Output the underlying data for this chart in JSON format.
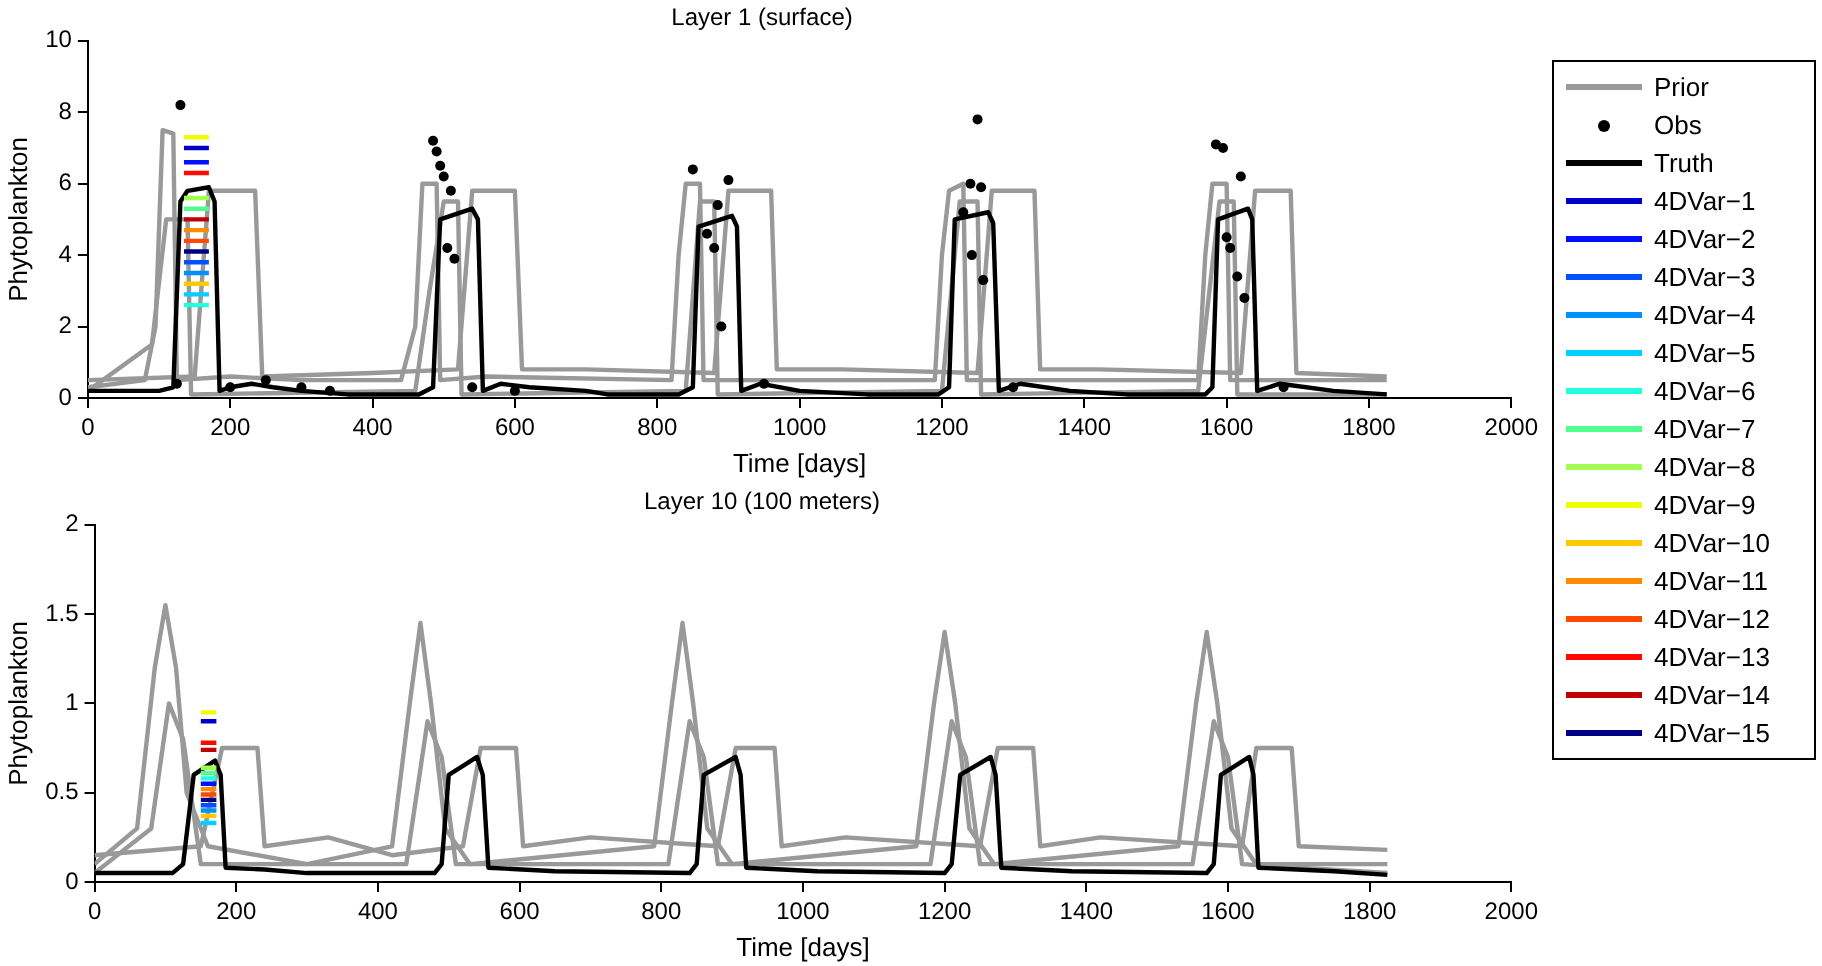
{
  "chart_data": [
    {
      "type": "line",
      "title": "Layer 1 (surface)",
      "xlabel": "Time [days]",
      "ylabel": "Phytoplankton",
      "xlim": [
        0,
        2000
      ],
      "xticks": [
        0,
        200,
        400,
        600,
        800,
        1000,
        1200,
        1400,
        1600,
        1800,
        2000
      ],
      "ylim": [
        0,
        10
      ],
      "yticks": [
        0,
        2,
        4,
        6,
        8,
        10
      ],
      "grid": false,
      "legend": "right",
      "series": [
        {
          "name": "Prior",
          "color": "#999999",
          "x": [
            0,
            80,
            95,
            105,
            120,
            125,
            200,
            300,
            440,
            460,
            470,
            490,
            495,
            560,
            820,
            830,
            840,
            860,
            865,
            940,
            1190,
            1200,
            1210,
            1230,
            1235,
            1300,
            1560,
            1570,
            1580,
            1600,
            1605,
            1700,
            1825
          ],
          "values": [
            0.3,
            0.5,
            2,
            7.5,
            7.4,
            0.5,
            0.6,
            0.5,
            0.5,
            2,
            6,
            6,
            0.5,
            0.6,
            0.5,
            4,
            6,
            6,
            0.5,
            0.5,
            0.5,
            4,
            5.8,
            6,
            0.5,
            0.5,
            0.5,
            4,
            6,
            6,
            0.5,
            0.5,
            0.5
          ]
        },
        {
          "color": "#999999",
          "x": [
            0,
            150,
            170,
            235,
            245,
            400,
            520,
            540,
            600,
            610,
            700,
            880,
            900,
            960,
            968,
            1060,
            1250,
            1270,
            1330,
            1338,
            1420,
            1620,
            1640,
            1690,
            1698,
            1825
          ],
          "values": [
            0.5,
            0.6,
            5.8,
            5.8,
            0.6,
            0.7,
            0.8,
            5.8,
            5.8,
            0.8,
            0.8,
            0.7,
            5.8,
            5.8,
            0.8,
            0.8,
            0.7,
            5.8,
            5.8,
            0.8,
            0.8,
            0.7,
            5.8,
            5.8,
            0.7,
            0.6
          ]
        },
        {
          "color": "#999999",
          "x": [
            0,
            90,
            110,
            140,
            145,
            460,
            480,
            500,
            520,
            525,
            840,
            860,
            880,
            885,
            1200,
            1225,
            1250,
            1255,
            1560,
            1590,
            1610,
            1615,
            1825
          ],
          "values": [
            0.2,
            1.5,
            5,
            5,
            0.1,
            0.2,
            3,
            5.5,
            5.5,
            0.1,
            0.2,
            5.5,
            5.5,
            0.1,
            0.2,
            5.5,
            5.5,
            0.1,
            0.2,
            5.5,
            5.5,
            0.1,
            0.1
          ]
        },
        {
          "name": "Obs",
          "type": "scatter",
          "color": "#000000",
          "x": [
            130,
            125,
            200,
            250,
            300,
            340,
            485,
            490,
            495,
            500,
            510,
            505,
            515,
            540,
            600,
            850,
            870,
            880,
            890,
            900,
            885,
            950,
            1250,
            1240,
            1255,
            1230,
            1242,
            1258,
            1300,
            1585,
            1595,
            1620,
            1600,
            1605,
            1615,
            1625,
            1680
          ],
          "values": [
            8.2,
            0.4,
            0.3,
            0.5,
            0.3,
            0.2,
            7.2,
            6.9,
            6.5,
            6.2,
            5.8,
            4.2,
            3.9,
            0.3,
            0.2,
            6.4,
            4.6,
            4.2,
            2,
            6.1,
            5.4,
            0.4,
            7.8,
            6.0,
            5.9,
            5.2,
            4.0,
            3.3,
            0.3,
            7.1,
            7.0,
            6.2,
            4.5,
            4.2,
            3.4,
            2.8,
            0.3
          ]
        },
        {
          "name": "Truth",
          "color": "#000000",
          "x": [
            0,
            100,
            120,
            130,
            140,
            170,
            178,
            185,
            200,
            230,
            260,
            300,
            365,
            465,
            485,
            495,
            540,
            548,
            555,
            580,
            620,
            700,
            730,
            830,
            850,
            858,
            905,
            912,
            918,
            945,
            1000,
            1095,
            1195,
            1210,
            1218,
            1265,
            1272,
            1280,
            1310,
            1380,
            1460,
            1570,
            1580,
            1588,
            1630,
            1636,
            1643,
            1675,
            1750,
            1825
          ],
          "values": [
            0.2,
            0.2,
            0.3,
            5.5,
            5.8,
            5.9,
            5.5,
            0.2,
            0.3,
            0.4,
            0.3,
            0.2,
            0.1,
            0.1,
            0.3,
            5.0,
            5.3,
            5.0,
            0.2,
            0.4,
            0.3,
            0.2,
            0.1,
            0.1,
            0.3,
            4.8,
            5.1,
            4.8,
            0.2,
            0.4,
            0.2,
            0.1,
            0.1,
            0.3,
            5.0,
            5.2,
            4.9,
            0.2,
            0.4,
            0.2,
            0.1,
            0.1,
            0.3,
            5.0,
            5.3,
            5.0,
            0.2,
            0.4,
            0.2,
            0.1
          ]
        },
        {
          "name": "4DVar−1",
          "color": "#0000c8",
          "x": [
            135,
            170
          ],
          "values": [
            7.0,
            7.0
          ]
        },
        {
          "name": "4DVar−2",
          "color": "#0010ff",
          "x": [
            135,
            170
          ],
          "values": [
            6.6,
            6.6
          ]
        },
        {
          "name": "4DVar−3",
          "color": "#0050ff",
          "x": [
            135,
            170
          ],
          "values": [
            3.8,
            3.8
          ]
        },
        {
          "name": "4DVar−4",
          "color": "#0090ff",
          "x": [
            135,
            170
          ],
          "values": [
            3.5,
            3.5
          ]
        },
        {
          "name": "4DVar−5",
          "color": "#00d0ff",
          "x": [
            135,
            170
          ],
          "values": [
            2.9,
            2.9
          ]
        },
        {
          "name": "4DVar−6",
          "color": "#20ffe0",
          "x": [
            135,
            170
          ],
          "values": [
            2.6,
            2.6
          ]
        },
        {
          "name": "4DVar−7",
          "color": "#50ff90",
          "x": [
            135,
            170
          ],
          "values": [
            5.3,
            5.3
          ]
        },
        {
          "name": "4DVar−8",
          "color": "#a0ff50",
          "x": [
            135,
            170
          ],
          "values": [
            5.6,
            5.6
          ]
        },
        {
          "name": "4DVar−9",
          "color": "#f0ff00",
          "x": [
            135,
            170
          ],
          "values": [
            7.3,
            7.3
          ]
        },
        {
          "name": "4DVar−10",
          "color": "#ffc800",
          "x": [
            135,
            170
          ],
          "values": [
            3.2,
            3.2
          ]
        },
        {
          "name": "4DVar−11",
          "color": "#ff8c00",
          "x": [
            135,
            170
          ],
          "values": [
            4.7,
            4.7
          ]
        },
        {
          "name": "4DVar−12",
          "color": "#ff4800",
          "x": [
            135,
            170
          ],
          "values": [
            4.4,
            4.4
          ]
        },
        {
          "name": "4DVar−13",
          "color": "#ff0a00",
          "x": [
            135,
            170
          ],
          "values": [
            6.3,
            6.3
          ]
        },
        {
          "name": "4DVar−14",
          "color": "#c00000",
          "x": [
            135,
            170
          ],
          "values": [
            5.0,
            5.0
          ]
        },
        {
          "name": "4DVar−15",
          "color": "#000080",
          "x": [
            135,
            170
          ],
          "values": [
            4.1,
            4.1
          ]
        }
      ]
    },
    {
      "type": "line",
      "title": "Layer 10 (100 meters)",
      "xlabel": "Time [days]",
      "ylabel": "Phytoplankton",
      "xlim": [
        0,
        2000
      ],
      "xticks": [
        0,
        200,
        400,
        600,
        800,
        1000,
        1200,
        1400,
        1600,
        1800,
        2000
      ],
      "ylim": [
        0,
        2
      ],
      "yticks": [
        0,
        0.5,
        1,
        1.5,
        2
      ],
      "grid": false,
      "series": [
        {
          "color": "#999999",
          "x": [
            0,
            60,
            85,
            100,
            115,
            130,
            160,
            300,
            420,
            445,
            460,
            475,
            495,
            530,
            790,
            815,
            830,
            845,
            865,
            900,
            1160,
            1185,
            1200,
            1215,
            1235,
            1270,
            1530,
            1555,
            1570,
            1585,
            1605,
            1640,
            1825
          ],
          "values": [
            0.1,
            0.3,
            1.2,
            1.55,
            1.2,
            0.5,
            0.2,
            0.1,
            0.2,
            1.0,
            1.45,
            1.0,
            0.3,
            0.1,
            0.2,
            1.0,
            1.45,
            1.0,
            0.3,
            0.1,
            0.2,
            1.0,
            1.4,
            1.0,
            0.3,
            0.1,
            0.2,
            1.0,
            1.4,
            1.0,
            0.3,
            0.1,
            0.1
          ]
        },
        {
          "color": "#999999",
          "x": [
            0,
            150,
            180,
            230,
            240,
            330,
            420,
            520,
            545,
            595,
            605,
            700,
            880,
            905,
            960,
            970,
            1060,
            1250,
            1275,
            1325,
            1335,
            1420,
            1620,
            1640,
            1690,
            1700,
            1825
          ],
          "values": [
            0.15,
            0.2,
            0.75,
            0.75,
            0.2,
            0.25,
            0.15,
            0.2,
            0.75,
            0.75,
            0.2,
            0.25,
            0.2,
            0.75,
            0.75,
            0.2,
            0.25,
            0.2,
            0.75,
            0.75,
            0.2,
            0.25,
            0.2,
            0.75,
            0.75,
            0.2,
            0.18
          ]
        },
        {
          "color": "#999999",
          "x": [
            0,
            80,
            105,
            125,
            150,
            440,
            470,
            490,
            510,
            810,
            840,
            860,
            880,
            1180,
            1210,
            1230,
            1250,
            1550,
            1580,
            1600,
            1620,
            1825
          ],
          "values": [
            0.05,
            0.3,
            1.0,
            0.8,
            0.1,
            0.1,
            0.9,
            0.7,
            0.1,
            0.1,
            0.9,
            0.7,
            0.1,
            0.1,
            0.9,
            0.7,
            0.1,
            0.1,
            0.9,
            0.7,
            0.1,
            0.05
          ]
        },
        {
          "color": "#000000",
          "x": [
            0,
            110,
            125,
            140,
            170,
            178,
            185,
            240,
            300,
            480,
            490,
            500,
            540,
            548,
            556,
            650,
            840,
            850,
            860,
            905,
            912,
            920,
            1020,
            1200,
            1210,
            1222,
            1265,
            1272,
            1280,
            1380,
            1570,
            1580,
            1590,
            1630,
            1636,
            1643,
            1750,
            1825
          ],
          "values": [
            0.05,
            0.05,
            0.1,
            0.6,
            0.68,
            0.6,
            0.08,
            0.07,
            0.05,
            0.05,
            0.1,
            0.6,
            0.7,
            0.6,
            0.08,
            0.06,
            0.05,
            0.1,
            0.6,
            0.7,
            0.6,
            0.08,
            0.06,
            0.05,
            0.1,
            0.6,
            0.7,
            0.6,
            0.08,
            0.06,
            0.05,
            0.1,
            0.6,
            0.7,
            0.6,
            0.08,
            0.06,
            0.04
          ]
        },
        {
          "color": "#0000c8",
          "x": [
            150,
            172
          ],
          "values": [
            0.9,
            0.9
          ]
        },
        {
          "color": "#0010ff",
          "x": [
            150,
            172
          ],
          "values": [
            0.55,
            0.55
          ]
        },
        {
          "color": "#0050ff",
          "x": [
            150,
            172
          ],
          "values": [
            0.43,
            0.43
          ]
        },
        {
          "color": "#0090ff",
          "x": [
            150,
            172
          ],
          "values": [
            0.4,
            0.4
          ]
        },
        {
          "color": "#00d0ff",
          "x": [
            150,
            172
          ],
          "values": [
            0.33,
            0.33
          ]
        },
        {
          "color": "#20ffe0",
          "x": [
            150,
            172
          ],
          "values": [
            0.58,
            0.58
          ]
        },
        {
          "color": "#50ff90",
          "x": [
            150,
            172
          ],
          "values": [
            0.61,
            0.61
          ]
        },
        {
          "color": "#a0ff50",
          "x": [
            150,
            172
          ],
          "values": [
            0.64,
            0.64
          ]
        },
        {
          "color": "#f0ff00",
          "x": [
            150,
            172
          ],
          "values": [
            0.95,
            0.95
          ]
        },
        {
          "color": "#ffc800",
          "x": [
            150,
            172
          ],
          "values": [
            0.37,
            0.37
          ]
        },
        {
          "color": "#ff8c00",
          "x": [
            150,
            172
          ],
          "values": [
            0.52,
            0.52
          ]
        },
        {
          "color": "#ff4800",
          "x": [
            150,
            172
          ],
          "values": [
            0.49,
            0.49
          ]
        },
        {
          "color": "#ff0a00",
          "x": [
            150,
            172
          ],
          "values": [
            0.78,
            0.78
          ]
        },
        {
          "color": "#c00000",
          "x": [
            150,
            172
          ],
          "values": [
            0.74,
            0.74
          ]
        },
        {
          "color": "#000080",
          "x": [
            150,
            172
          ],
          "values": [
            0.46,
            0.46
          ]
        }
      ]
    }
  ]
}
